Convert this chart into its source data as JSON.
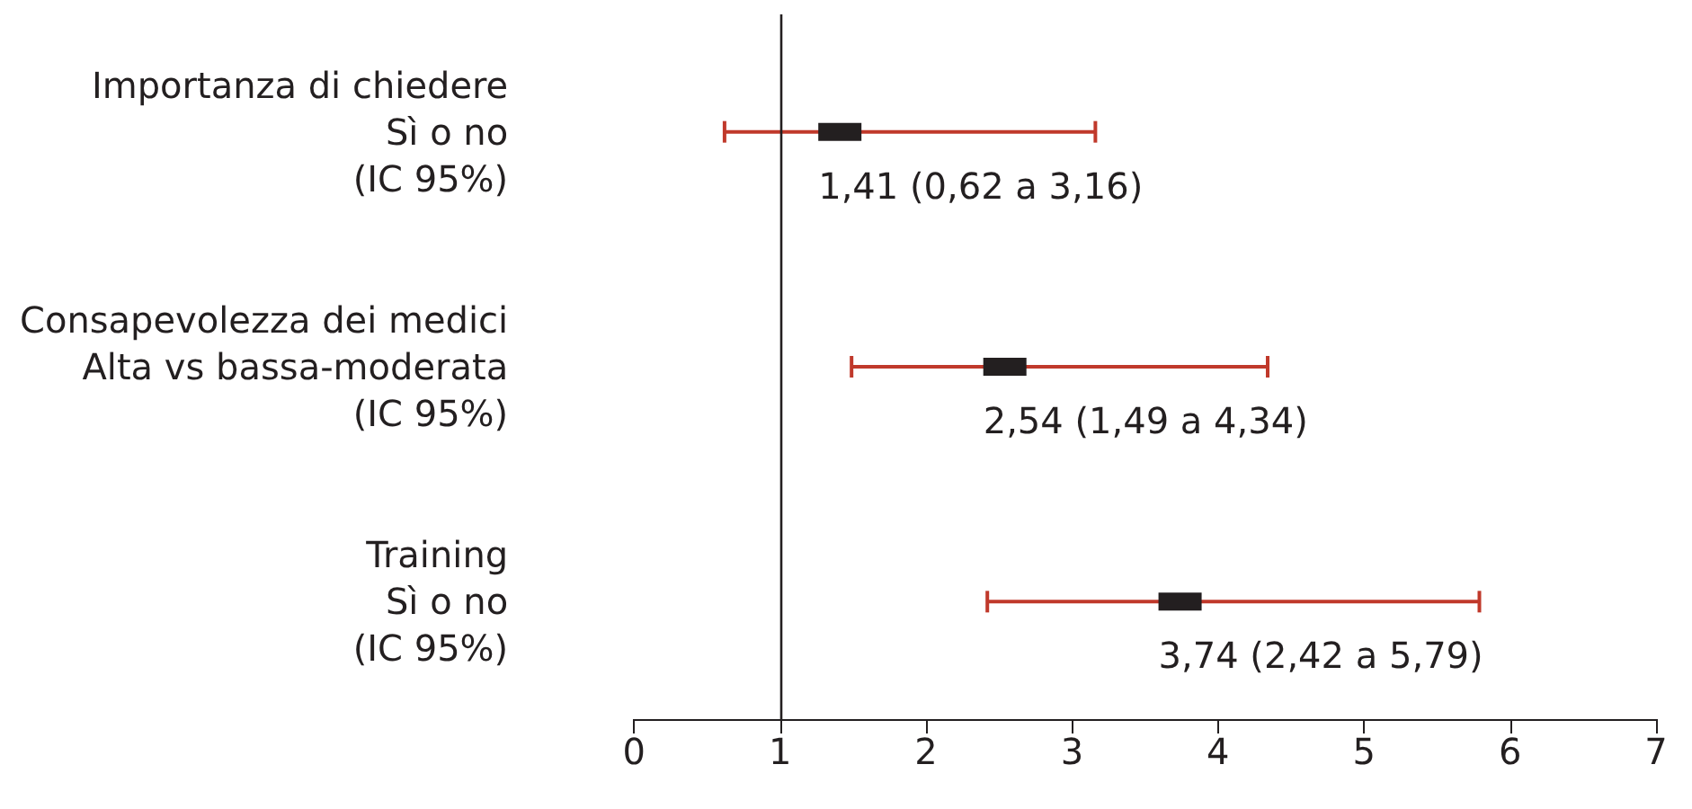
{
  "chart_data": {
    "type": "scatter",
    "orientation": "horizontal",
    "categories": [
      "Importanza di chiedere\nSì o no\n(IC 95%)",
      "Consapevolezza dei medici\nAlta vs bassa-moderata\n(IC 95%)",
      "Training\nSì o no\n(IC 95%)"
    ],
    "series": [
      {
        "color": "#231f20",
        "values": [
          1.41,
          2.54,
          3.74
        ],
        "errors": [
          [
            0.62,
            3.16
          ],
          [
            1.49,
            4.34
          ],
          [
            2.42,
            5.79
          ]
        ],
        "value_labels": [
          "1,41 (0,62 a 3,16)",
          "2,54 (1,49 a 4,34)",
          "3,74 (2,42 a 5,79)"
        ]
      }
    ],
    "xlim": [
      0,
      7
    ],
    "xticks": [
      0,
      1,
      2,
      3,
      4,
      5,
      6,
      7
    ],
    "ref_lines": [
      {
        "axis": "x",
        "value": 1,
        "color": "#231f20"
      }
    ],
    "marker": "square",
    "grid": false
  }
}
